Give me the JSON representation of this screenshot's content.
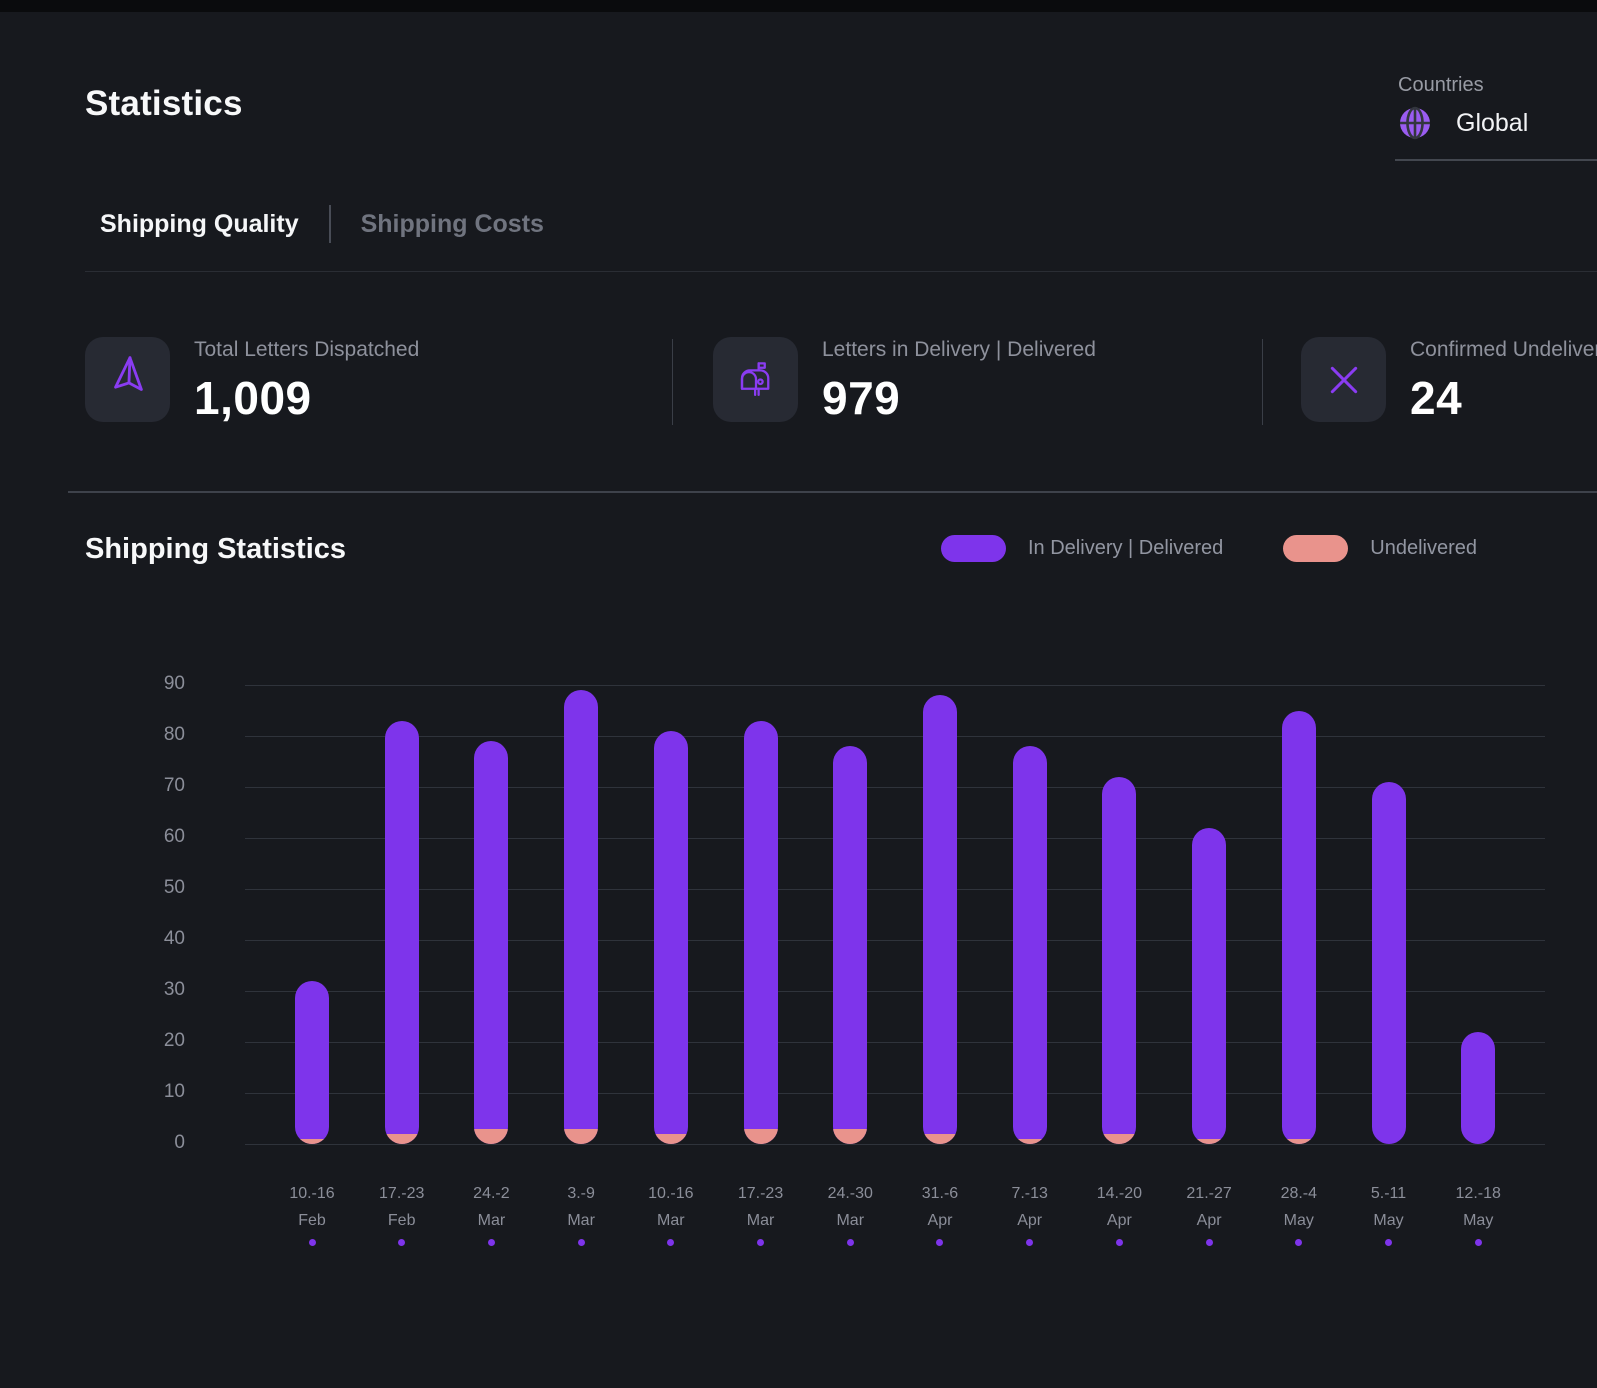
{
  "header": {
    "title": "Statistics",
    "countries_label": "Countries",
    "country_value": "Global"
  },
  "tabs": [
    {
      "label": "Shipping Quality",
      "active": true
    },
    {
      "label": "Shipping Costs",
      "active": false
    }
  ],
  "stats": [
    {
      "icon": "send-icon",
      "label": "Total Letters Dispatched",
      "value": "1,009"
    },
    {
      "icon": "mailbox-icon",
      "label": "Letters in Delivery | Delivered",
      "value": "979"
    },
    {
      "icon": "x-icon",
      "label": "Confirmed Undelivered",
      "value": "24"
    }
  ],
  "section": {
    "title": "Shipping Statistics"
  },
  "colors": {
    "background": "#17191e",
    "accent_purple": "#7e34eb",
    "salmon": "#e9938c",
    "text_primary": "#f7f8f9",
    "text_muted": "#8e919c",
    "icon_box": "#272a33",
    "gridline": "#2f333b"
  },
  "chart_data": {
    "type": "bar",
    "stacked": true,
    "title": "Shipping Statistics",
    "categories": [
      {
        "week": "10.-16",
        "month": "Feb"
      },
      {
        "week": "17.-23",
        "month": "Feb"
      },
      {
        "week": "24.-2",
        "month": "Mar"
      },
      {
        "week": "3.-9",
        "month": "Mar"
      },
      {
        "week": "10.-16",
        "month": "Mar"
      },
      {
        "week": "17.-23",
        "month": "Mar"
      },
      {
        "week": "24.-30",
        "month": "Mar"
      },
      {
        "week": "31.-6",
        "month": "Apr"
      },
      {
        "week": "7.-13",
        "month": "Apr"
      },
      {
        "week": "14.-20",
        "month": "Apr"
      },
      {
        "week": "21.-27",
        "month": "Apr"
      },
      {
        "week": "28.-4",
        "month": "May"
      },
      {
        "week": "5.-11",
        "month": "May"
      },
      {
        "week": "12.-18",
        "month": "May"
      }
    ],
    "series": [
      {
        "name": "In Delivery | Delivered",
        "color": "#7e34eb",
        "values": [
          31,
          81,
          76,
          86,
          79,
          80,
          75,
          86,
          77,
          70,
          61,
          84,
          71,
          22
        ]
      },
      {
        "name": "Undelivered",
        "color": "#e9938c",
        "values": [
          1,
          2,
          3,
          3,
          2,
          3,
          3,
          2,
          1,
          2,
          1,
          1,
          0,
          0
        ]
      }
    ],
    "totals": [
      32,
      83,
      79,
      89,
      81,
      83,
      78,
      88,
      78,
      72,
      62,
      85,
      71,
      22
    ],
    "ylim": [
      0,
      90
    ],
    "yticks": [
      0,
      10,
      20,
      30,
      40,
      50,
      60,
      70,
      80,
      90
    ],
    "grid": "horizontal",
    "legend_position": "top-right"
  }
}
